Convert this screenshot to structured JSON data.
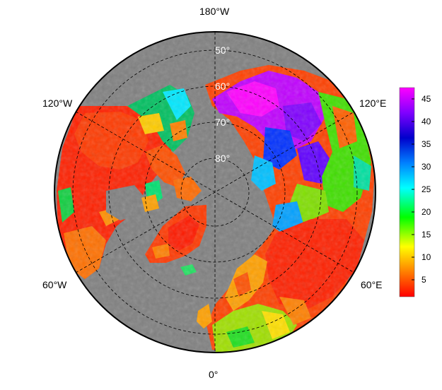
{
  "map": {
    "projection": "north-polar-stereographic",
    "background_color": "#808080",
    "outline_color": "#000000",
    "longitude_labels": {
      "top": "180°W",
      "upper_left": "120°W",
      "upper_right": "120°E",
      "lower_left": "60°W",
      "lower_right": "60°E",
      "bottom": "0°"
    },
    "latitude_labels": [
      "50°",
      "60°",
      "70°",
      "80°"
    ]
  },
  "colorbar": {
    "ticks": [
      "45",
      "40",
      "35",
      "30",
      "25",
      "20",
      "15",
      "10",
      "5"
    ],
    "colors": [
      "#ff0000",
      "#ff8000",
      "#ffff00",
      "#00ff00",
      "#00ffff",
      "#0080ff",
      "#0000cc",
      "#8000ff",
      "#ff00ff"
    ]
  }
}
